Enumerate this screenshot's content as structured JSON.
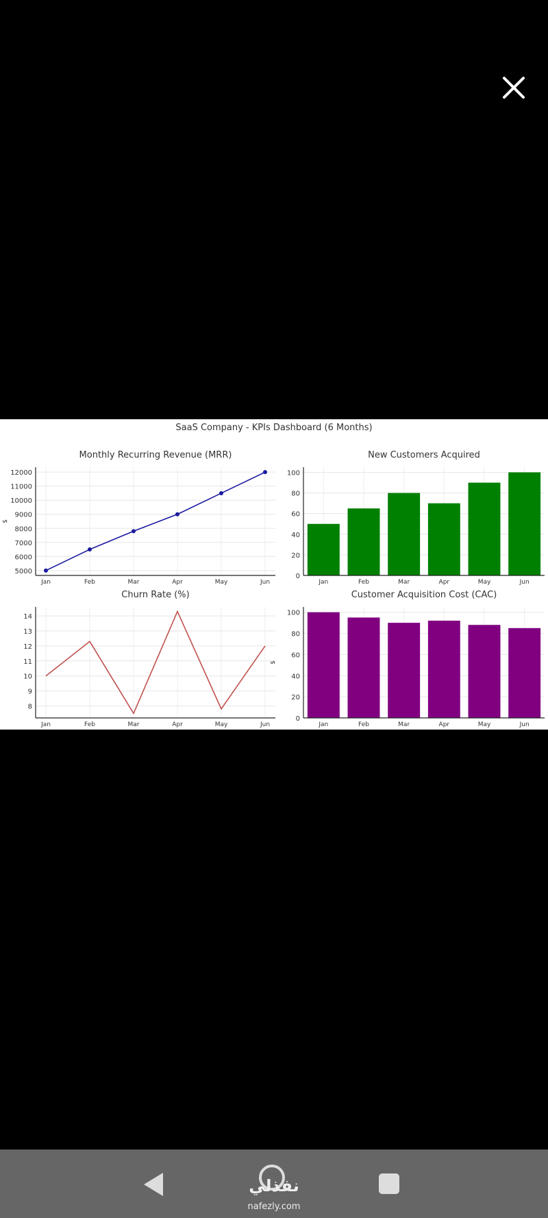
{
  "viewer": {
    "close_label": "close"
  },
  "watermark": {
    "arabic": "نفذلي",
    "site": "nafezly.com"
  },
  "chart_data": [
    {
      "type": "line",
      "title": "Monthly Recurring Revenue (MRR)",
      "ylabel": "$",
      "xlabel": "",
      "categories": [
        "Jan",
        "Feb",
        "Mar",
        "Apr",
        "May",
        "Jun"
      ],
      "values": [
        5000,
        6500,
        7800,
        9000,
        10500,
        12000
      ],
      "ylim": [
        4650,
        12350
      ],
      "yticks": [
        5000,
        6000,
        7000,
        8000,
        9000,
        10000,
        11000,
        12000
      ],
      "color": "#1a1aa0",
      "markers": true,
      "grid": true
    },
    {
      "type": "bar",
      "title": "New Customers Acquired",
      "ylabel": "",
      "xlabel": "",
      "categories": [
        "Jan",
        "Feb",
        "Mar",
        "Apr",
        "May",
        "Jun"
      ],
      "values": [
        50,
        65,
        80,
        70,
        90,
        100
      ],
      "ylim": [
        0,
        105
      ],
      "yticks": [
        0,
        20,
        40,
        60,
        80,
        100
      ],
      "color": "#008000",
      "grid": true
    },
    {
      "type": "line",
      "title": "Churn Rate (%)",
      "ylabel": "",
      "xlabel": "",
      "categories": [
        "Jan",
        "Feb",
        "Mar",
        "Apr",
        "May",
        "Jun"
      ],
      "values": [
        10,
        12.3,
        7.5,
        14.3,
        7.8,
        12
      ],
      "ylim": [
        7.2,
        14.6
      ],
      "yticks": [
        8,
        9,
        10,
        11,
        12,
        13,
        14
      ],
      "color": "#c0504d",
      "markers": false,
      "grid": true
    },
    {
      "type": "bar",
      "title": "Customer Acquisition Cost (CAC)",
      "ylabel": "$",
      "xlabel": "",
      "categories": [
        "Jan",
        "Feb",
        "Mar",
        "Apr",
        "May",
        "Jun"
      ],
      "values": [
        100,
        95,
        90,
        92,
        88,
        85
      ],
      "ylim": [
        0,
        105
      ],
      "yticks": [
        0,
        20,
        40,
        60,
        80,
        100
      ],
      "color": "#800080",
      "grid": true
    }
  ],
  "suptitle": "SaaS Company - KPIs Dashboard (6 Months)"
}
